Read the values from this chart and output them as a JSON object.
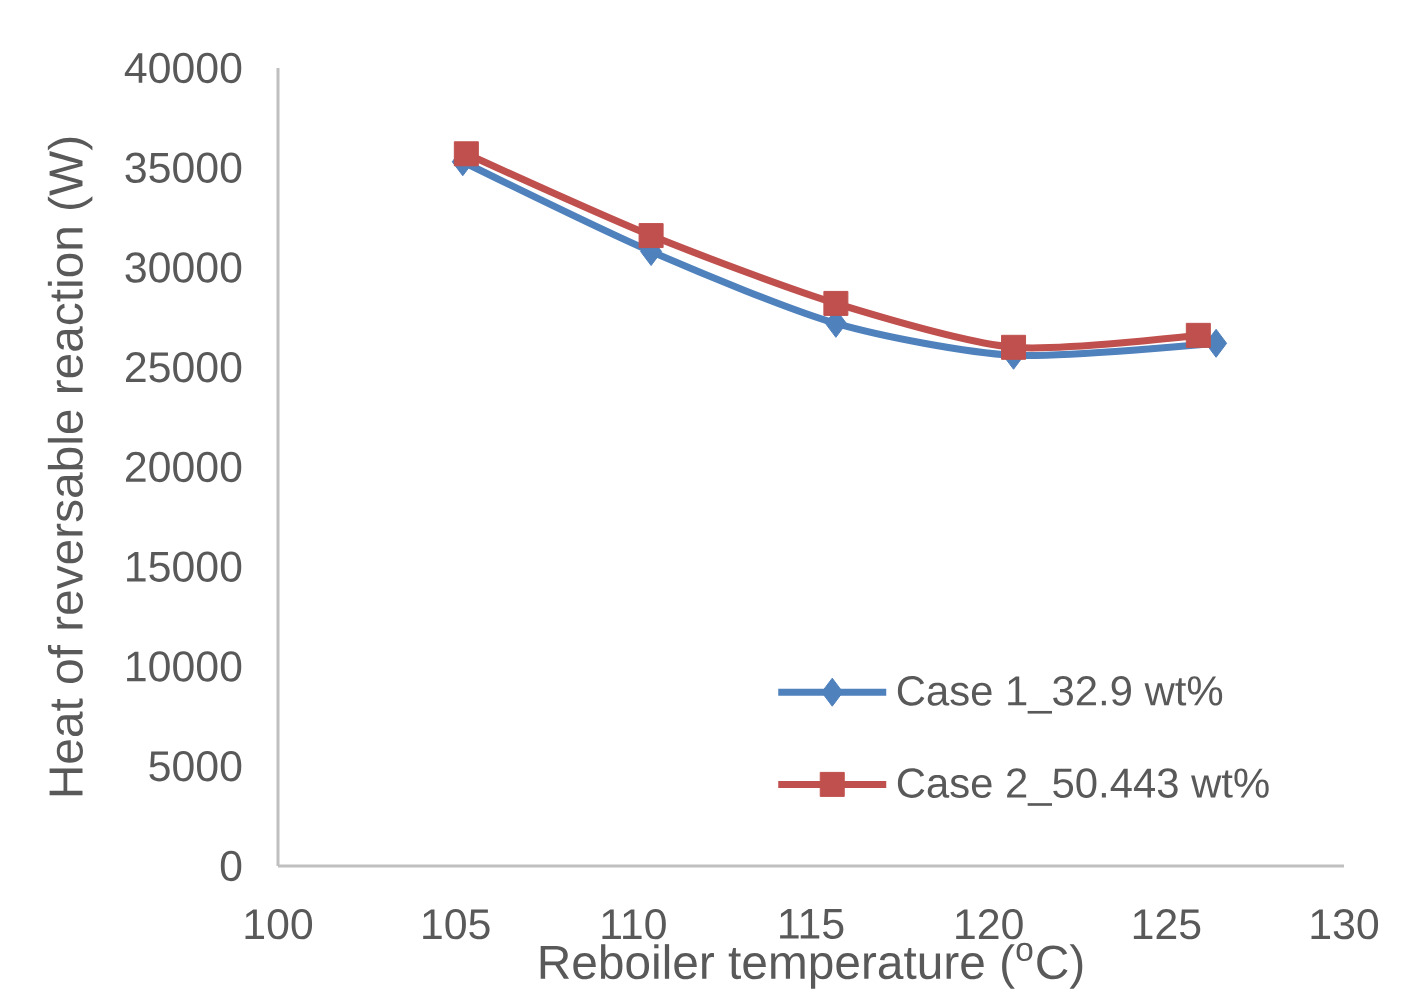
{
  "chart_data": {
    "type": "line",
    "xlabel": "Reboiler temperature ($^{o}$C)",
    "ylabel": "Heat of reversable reaction (W)",
    "xlim": [
      100,
      130
    ],
    "xticks": [
      100,
      105,
      110,
      115,
      120,
      125,
      130
    ],
    "ylim": [
      0,
      40000
    ],
    "yticks": [
      0,
      5000,
      10000,
      15000,
      20000,
      25000,
      30000,
      35000,
      40000
    ],
    "legend": "bottom right",
    "series": [
      {
        "name": "Case 1_32.9 wt%",
        "color": "#4f81bd",
        "marker": "diamond",
        "x": [
          105.2,
          110.5,
          115.7,
          120.7,
          126.4
        ],
        "values": [
          35300,
          30800,
          27200,
          25600,
          26200
        ]
      },
      {
        "name": "Case 2_50.443 wt%",
        "color": "#c0504d",
        "marker": "square",
        "x": [
          105.3,
          110.5,
          115.7,
          120.7,
          125.9
        ],
        "values": [
          35700,
          31600,
          28200,
          26000,
          26600
        ]
      }
    ]
  }
}
